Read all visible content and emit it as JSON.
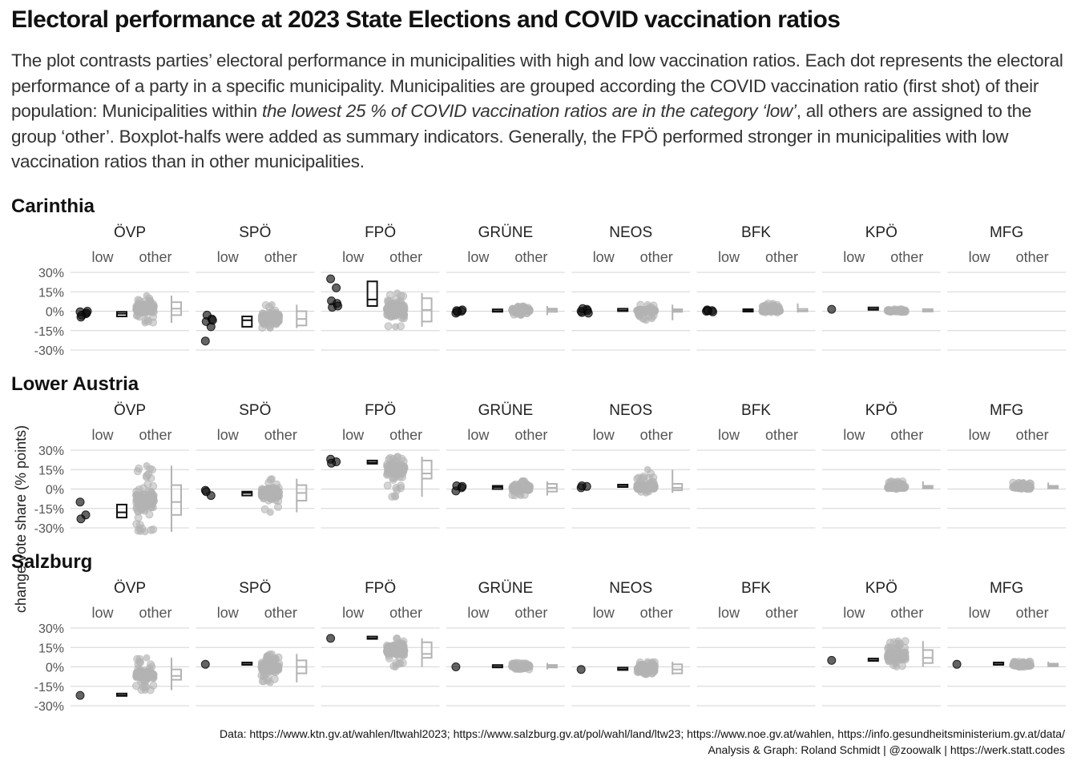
{
  "title": "Electoral performance at 2023 State Elections and COVID vaccination ratios",
  "subtitle": {
    "part1": "The plot contrasts parties’ electoral performance in municipalities with high and low vaccination ratios. Each dot represents the electoral performance of a party in a specific municipality. Municipalities are grouped according the COVID vaccination ratio (first shot) of their population: Municipalities within ",
    "italic": "the lowest 25 % of COVID vaccination ratios are in the category ‘low’",
    "part2": ", all others are assigned to the group ‘other’. Boxplot-halfs were added as summary indicators. Generally, the FPÖ performed stronger in municipalities with low vaccination ratios than in other municipalities."
  },
  "caption": {
    "line1": "Data: https://www.ktn.gv.at/wahlen/ltwahl2023; https://www.salzburg.gv.at/pol/wahl/land/ltw23; https://www.noe.gv.at/wahlen, https://info.gesundheitsministerium.gv.at/data/",
    "line2": "Analysis & Graph: Roland Schmidt | @zoowalk | https://werk.statt.codes"
  },
  "chart_data": {
    "type": "scatter",
    "ylabel": "change vote share (% points)",
    "ylim": [
      -30,
      30
    ],
    "yticks": [
      30,
      15,
      0,
      -15,
      -30
    ],
    "ytick_labels": [
      "30%",
      "15%",
      "0%",
      "-15%",
      "-30%"
    ],
    "groups": [
      "low",
      "other"
    ],
    "group_colors": {
      "low": "#111111",
      "other": "#b3b3b3"
    },
    "parties": [
      "ÖVP",
      "SPÖ",
      "FPÖ",
      "GRÜNE",
      "NEOS",
      "BFK",
      "KPÖ",
      "MFG"
    ],
    "grid": true,
    "states": [
      {
        "name": "Carinthia",
        "panels": [
          {
            "party": "ÖVP",
            "low": {
              "points": [
                -0.5,
                -2,
                -4.5,
                -1.5,
                -3,
                0
              ],
              "box": [
                -4,
                -2,
                -0.5
              ]
            },
            "other": {
              "range": [
                -9,
                12
              ],
              "box": [
                -3,
                2,
                7
              ]
            }
          },
          {
            "party": "SPÖ",
            "low": {
              "points": [
                -23,
                -12,
                -8,
                -6,
                -3,
                -7
              ],
              "box": [
                -12,
                -7,
                -4
              ]
            },
            "other": {
              "range": [
                -13,
                5
              ],
              "box": [
                -11,
                -6,
                0
              ]
            }
          },
          {
            "party": "FPÖ",
            "low": {
              "points": [
                25,
                18,
                8,
                6,
                3,
                4
              ],
              "box": [
                4,
                9,
                23
              ]
            },
            "other": {
              "range": [
                -12,
                14
              ],
              "box": [
                -8,
                1,
                10
              ]
            }
          },
          {
            "party": "GRÜNE",
            "low": {
              "points": [
                -1.5,
                0,
                0.5,
                1,
                -0.5
              ],
              "box": [
                -0.5,
                0,
                0.5
              ]
            },
            "other": {
              "range": [
                -3,
                4
              ],
              "box": [
                -0.5,
                1,
                2
              ]
            }
          },
          {
            "party": "NEOS",
            "low": {
              "points": [
                0,
                1.5,
                -1,
                0.5,
                2,
                -1.5
              ],
              "box": [
                0,
                0.5,
                1
              ]
            },
            "other": {
              "range": [
                -7,
                5
              ],
              "box": [
                -0.5,
                0.5,
                1.5
              ]
            }
          },
          {
            "party": "BFK",
            "low": {
              "points": [
                0,
                0.5,
                1,
                -0.5,
                0.3
              ],
              "box": [
                0,
                0.3,
                0.6
              ]
            },
            "other": {
              "range": [
                -1,
                6
              ],
              "box": [
                0,
                0.3,
                0.8
              ]
            }
          },
          {
            "party": "KPÖ",
            "low": {
              "points": [
                1.5
              ],
              "box": [
                1,
                1.5,
                2
              ]
            },
            "other": {
              "range": [
                -0.5,
                1.5
              ],
              "box": [
                0,
                0.3,
                0.7
              ]
            }
          },
          {
            "party": "MFG",
            "low": null,
            "other": null
          }
        ]
      },
      {
        "name": "Lower Austria",
        "panels": [
          {
            "party": "ÖVP",
            "low": {
              "points": [
                -10,
                -20,
                -23
              ],
              "box": [
                -22,
                -18,
                -12
              ]
            },
            "other": {
              "range": [
                -33,
                18
              ],
              "box": [
                -20,
                -10,
                3
              ]
            }
          },
          {
            "party": "SPÖ",
            "low": {
              "points": [
                -1,
                -5,
                -2
              ],
              "box": [
                -5,
                -3,
                -2
              ]
            },
            "other": {
              "range": [
                -18,
                8
              ],
              "box": [
                -9,
                -3,
                3
              ]
            }
          },
          {
            "party": "FPÖ",
            "low": {
              "points": [
                23,
                21,
                20
              ],
              "box": [
                19.5,
                20.5,
                22
              ]
            },
            "other": {
              "range": [
                -6,
                25
              ],
              "box": [
                8,
                12,
                22
              ]
            }
          },
          {
            "party": "GRÜNE",
            "low": {
              "points": [
                -1.5,
                1,
                2.5,
                2
              ],
              "box": [
                0,
                1.5,
                2.5
              ]
            },
            "other": {
              "range": [
                -5,
                6
              ],
              "box": [
                -2,
                1,
                4
              ]
            }
          },
          {
            "party": "NEOS",
            "low": {
              "points": [
                1,
                2,
                2.5
              ],
              "box": [
                1.5,
                2,
                2.5
              ]
            },
            "other": {
              "range": [
                -3,
                15
              ],
              "box": [
                -1,
                1,
                4
              ]
            }
          },
          {
            "party": "BFK",
            "low": null,
            "other": null
          },
          {
            "party": "KPÖ",
            "low": null,
            "other": {
              "range": [
                0,
                6
              ],
              "box": [
                0.5,
                1.5,
                2.5
              ]
            }
          },
          {
            "party": "MFG",
            "low": null,
            "other": {
              "range": [
                0,
                5
              ],
              "box": [
                0.5,
                1.5,
                2.5
              ]
            }
          }
        ]
      },
      {
        "name": "Salzburg",
        "panels": [
          {
            "party": "ÖVP",
            "low": {
              "points": [
                -22
              ],
              "box": [
                -22.5,
                -22,
                -21.5
              ]
            },
            "other": {
              "range": [
                -18,
                7
              ],
              "box": [
                -10,
                -7,
                -2
              ]
            }
          },
          {
            "party": "SPÖ",
            "low": {
              "points": [
                2
              ],
              "box": [
                1.5,
                2,
                2.5
              ]
            },
            "other": {
              "range": [
                -12,
                10
              ],
              "box": [
                -5,
                0,
                5
              ]
            }
          },
          {
            "party": "FPÖ",
            "low": {
              "points": [
                22
              ],
              "box": [
                21.5,
                22,
                22.5
              ]
            },
            "other": {
              "range": [
                0,
                22
              ],
              "box": [
                7,
                10,
                19
              ]
            }
          },
          {
            "party": "GRÜNE",
            "low": {
              "points": [
                0
              ],
              "box": [
                -0.5,
                0,
                0.5
              ]
            },
            "other": {
              "range": [
                -2,
                3
              ],
              "box": [
                -0.5,
                0.5,
                1.5
              ]
            }
          },
          {
            "party": "NEOS",
            "low": {
              "points": [
                -2
              ],
              "box": [
                -2.5,
                -2,
                -1.5
              ]
            },
            "other": {
              "range": [
                -6,
                4
              ],
              "box": [
                -5,
                -2,
                2
              ]
            }
          },
          {
            "party": "BFK",
            "low": null,
            "other": null
          },
          {
            "party": "KPÖ",
            "low": {
              "points": [
                5
              ],
              "box": [
                4.5,
                5,
                5.5
              ]
            },
            "other": {
              "range": [
                0,
                20
              ],
              "box": [
                3,
                7,
                13
              ]
            }
          },
          {
            "party": "MFG",
            "low": {
              "points": [
                2
              ],
              "box": [
                1.5,
                2,
                2.5
              ]
            },
            "other": {
              "range": [
                0,
                4
              ],
              "box": [
                0.5,
                1.5,
                2.5
              ]
            }
          }
        ]
      }
    ]
  }
}
